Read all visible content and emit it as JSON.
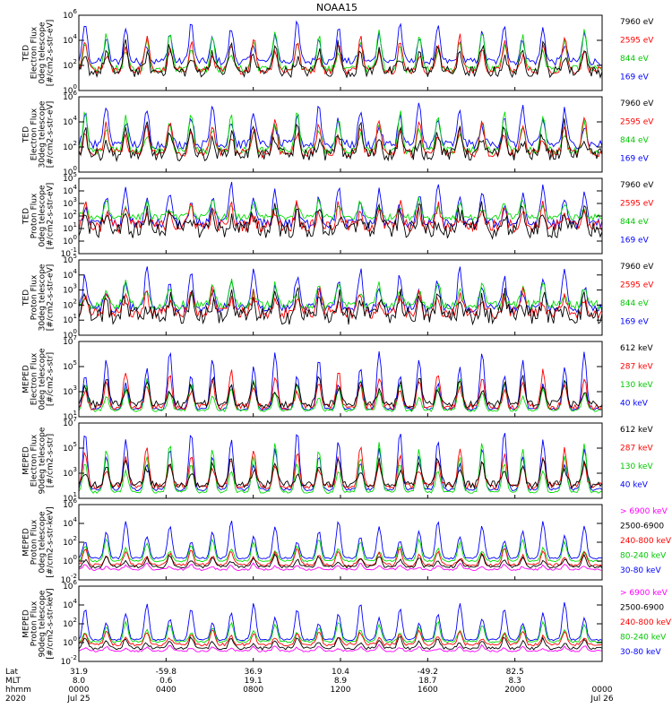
{
  "chart_data": {
    "type": "line",
    "title": "NOAA15",
    "x_start": "Jul 25",
    "x_end": "Jul 26",
    "x_year": "2020",
    "x_row_labels": [
      "Lat",
      "MLT",
      "hhmm",
      "2020"
    ],
    "x_ticks": [
      {
        "lat": "31.9",
        "mlt": "8.0",
        "hhmm": "0000"
      },
      {
        "lat": "-59.8",
        "mlt": "0.6",
        "hhmm": "0400"
      },
      {
        "lat": "36.9",
        "mlt": "19.1",
        "hhmm": "0800"
      },
      {
        "lat": "10.4",
        "mlt": "8.9",
        "hhmm": "1200"
      },
      {
        "lat": "-49.2",
        "mlt": "18.7",
        "hhmm": "1600"
      },
      {
        "lat": "82.5",
        "mlt": "8.3",
        "hhmm": "2000"
      },
      {
        "lat": "",
        "mlt": "",
        "hhmm": "0000"
      }
    ],
    "panels": [
      {
        "ylabel": [
          "TED",
          "Electron Flux",
          "0deg telescope",
          "[#/cm2-s-str-eV]"
        ],
        "ylim_exp": [
          0,
          6
        ],
        "yticks": [
          {
            "e": "0",
            "v": 0
          },
          {
            "e": "2",
            "v": 2
          },
          {
            "e": "4",
            "v": 4
          },
          {
            "e": "6",
            "v": 6
          }
        ],
        "series": [
          {
            "name": "7960 eV",
            "color": "#000000",
            "base": 1.5,
            "peak": 3.8,
            "noise": 0.45
          },
          {
            "name": "2595 eV",
            "color": "#ff0000",
            "base": 1.6,
            "peak": 4.3,
            "noise": 0.3
          },
          {
            "name": "844 eV",
            "color": "#00dd00",
            "base": 1.7,
            "peak": 4.8,
            "noise": 0.3
          },
          {
            "name": "169 eV",
            "color": "#0000ff",
            "base": 2.3,
            "peak": 5.4,
            "noise": 0.3
          }
        ]
      },
      {
        "ylabel": [
          "TED",
          "Electron Flux",
          "30deg telescope",
          "[#/cm2-s-str-eV]"
        ],
        "ylim_exp": [
          0,
          6
        ],
        "yticks": [
          {
            "e": "0",
            "v": 0
          },
          {
            "e": "2",
            "v": 2
          },
          {
            "e": "4",
            "v": 4
          },
          {
            "e": "6",
            "v": 6
          }
        ],
        "series": [
          {
            "name": "7960 eV",
            "color": "#000000",
            "base": 1.4,
            "peak": 3.8,
            "noise": 0.5
          },
          {
            "name": "2595 eV",
            "color": "#ff0000",
            "base": 1.5,
            "peak": 4.3,
            "noise": 0.35
          },
          {
            "name": "844 eV",
            "color": "#00dd00",
            "base": 1.7,
            "peak": 4.8,
            "noise": 0.3
          },
          {
            "name": "169 eV",
            "color": "#0000ff",
            "base": 2.2,
            "peak": 5.4,
            "noise": 0.35
          }
        ]
      },
      {
        "ylabel": [
          "TED",
          "Proton Flux",
          "0deg telescope",
          "[#/cm2-s-str-eV]"
        ],
        "ylim_exp": [
          -1,
          5
        ],
        "yticks": [
          {
            "e": "-1",
            "v": -1
          },
          {
            "e": "0",
            "v": 0
          },
          {
            "e": "1",
            "v": 1
          },
          {
            "e": "2",
            "v": 2
          },
          {
            "e": "3",
            "v": 3
          },
          {
            "e": "4",
            "v": 4
          },
          {
            "e": "5",
            "v": 5
          }
        ],
        "series": [
          {
            "name": "7960 eV",
            "color": "#000000",
            "base": 0.9,
            "peak": 2.8,
            "noise": 0.7
          },
          {
            "name": "2595 eV",
            "color": "#ff0000",
            "base": 1.2,
            "peak": 3.0,
            "noise": 0.5
          },
          {
            "name": "844 eV",
            "color": "#00dd00",
            "base": 1.9,
            "peak": 3.3,
            "noise": 0.25
          },
          {
            "name": "169 eV",
            "color": "#0000ff",
            "base": 1.4,
            "peak": 4.4,
            "noise": 0.4
          }
        ]
      },
      {
        "ylabel": [
          "TED",
          "Proton Flux",
          "30deg telescope",
          "[#/cm2-s-str-eV]"
        ],
        "ylim_exp": [
          0,
          5
        ],
        "yticks": [
          {
            "e": "0",
            "v": 0
          },
          {
            "e": "1",
            "v": 1
          },
          {
            "e": "2",
            "v": 2
          },
          {
            "e": "3",
            "v": 3
          },
          {
            "e": "4",
            "v": 4
          },
          {
            "e": "5",
            "v": 5
          }
        ],
        "series": [
          {
            "name": "7960 eV",
            "color": "#000000",
            "base": 1.3,
            "peak": 2.8,
            "noise": 0.6
          },
          {
            "name": "2595 eV",
            "color": "#ff0000",
            "base": 1.5,
            "peak": 3.0,
            "noise": 0.4
          },
          {
            "name": "844 eV",
            "color": "#00dd00",
            "base": 2.0,
            "peak": 3.5,
            "noise": 0.3
          },
          {
            "name": "169 eV",
            "color": "#0000ff",
            "base": 1.8,
            "peak": 4.3,
            "noise": 0.3
          }
        ]
      },
      {
        "ylabel": [
          "MEPED",
          "Electron Flux",
          "0deg telescope",
          "[#/cm2-s-str]"
        ],
        "ylim_exp": [
          1,
          7
        ],
        "yticks": [
          {
            "e": "1",
            "v": 1
          },
          {
            "e": "3",
            "v": 3
          },
          {
            "e": "5",
            "v": 5
          },
          {
            "e": "7",
            "v": 7
          }
        ],
        "series": [
          {
            "name": "612 keV",
            "color": "#000000",
            "base": 2.0,
            "peak": 4.2,
            "noise": 0.3
          },
          {
            "name": "287 keV",
            "color": "#ff0000",
            "base": 1.8,
            "peak": 4.6,
            "noise": 0.25
          },
          {
            "name": "130 keV",
            "color": "#00dd00",
            "base": 1.5,
            "peak": 4.0,
            "noise": 0.1
          },
          {
            "name": "40 keV",
            "color": "#0000ff",
            "base": 1.6,
            "peak": 6.2,
            "noise": 0.1
          }
        ]
      },
      {
        "ylabel": [
          "MEPED",
          "Electron Flux",
          "90deg telescope",
          "[#/cm2-s-str]"
        ],
        "ylim_exp": [
          1,
          7
        ],
        "yticks": [
          {
            "e": "1",
            "v": 1
          },
          {
            "e": "3",
            "v": 3
          },
          {
            "e": "5",
            "v": 5
          },
          {
            "e": "7",
            "v": 7
          }
        ],
        "series": [
          {
            "name": "612 keV",
            "color": "#000000",
            "base": 2.1,
            "peak": 4.3,
            "noise": 0.3
          },
          {
            "name": "287 keV",
            "color": "#ff0000",
            "base": 2.0,
            "peak": 5.0,
            "noise": 0.25
          },
          {
            "name": "130 keV",
            "color": "#00dd00",
            "base": 1.5,
            "peak": 5.4,
            "noise": 0.1
          },
          {
            "name": "40 keV",
            "color": "#0000ff",
            "base": 1.7,
            "peak": 6.3,
            "noise": 0.1
          }
        ]
      },
      {
        "ylabel": [
          "MEPED",
          "Proton Flux",
          "0deg telescope",
          "[#/cm2-s-str-keV]"
        ],
        "ylim_exp": [
          -2,
          6
        ],
        "yticks": [
          {
            "e": "-2",
            "v": -2
          },
          {
            "e": "0",
            "v": 0
          },
          {
            "e": "2",
            "v": 2
          },
          {
            "e": "4",
            "v": 4
          },
          {
            "e": "6",
            "v": 6
          }
        ],
        "series": [
          {
            "name": "> 6900 keV",
            "color": "#ff00ff",
            "base": -0.9,
            "peak": -0.3,
            "noise": 0.1
          },
          {
            "name": "2500-6900",
            "color": "#000000",
            "base": -0.6,
            "peak": 0.6,
            "noise": 0.15
          },
          {
            "name": "240-800 keV",
            "color": "#ff0000",
            "base": -0.4,
            "peak": 1.3,
            "noise": 0.15
          },
          {
            "name": "80-240 keV",
            "color": "#00dd00",
            "base": 0.0,
            "peak": 2.3,
            "noise": 0.1
          },
          {
            "name": "30-80 keV",
            "color": "#0000ff",
            "base": 0.3,
            "peak": 4.3,
            "noise": 0.1
          }
        ]
      },
      {
        "ylabel": [
          "MEPED",
          "Proton Flux",
          "90deg telescope",
          "[#/cm2-s-str-keV]"
        ],
        "ylim_exp": [
          -2,
          6
        ],
        "yticks": [
          {
            "e": "-2",
            "v": -2
          },
          {
            "e": "0",
            "v": 0
          },
          {
            "e": "2",
            "v": 2
          },
          {
            "e": "4",
            "v": 4
          },
          {
            "e": "6",
            "v": 6
          }
        ],
        "series": [
          {
            "name": "> 6900 keV",
            "color": "#ff00ff",
            "base": -0.9,
            "peak": -0.3,
            "noise": 0.1
          },
          {
            "name": "2500-6900",
            "color": "#000000",
            "base": -0.6,
            "peak": 0.6,
            "noise": 0.15
          },
          {
            "name": "240-800 keV",
            "color": "#ff0000",
            "base": -0.2,
            "peak": 1.3,
            "noise": 0.15
          },
          {
            "name": "80-240 keV",
            "color": "#00dd00",
            "base": 0.1,
            "peak": 2.2,
            "noise": 0.1
          },
          {
            "name": "30-80 keV",
            "color": "#0000ff",
            "base": 0.3,
            "peak": 4.2,
            "noise": 0.1
          }
        ]
      }
    ]
  }
}
